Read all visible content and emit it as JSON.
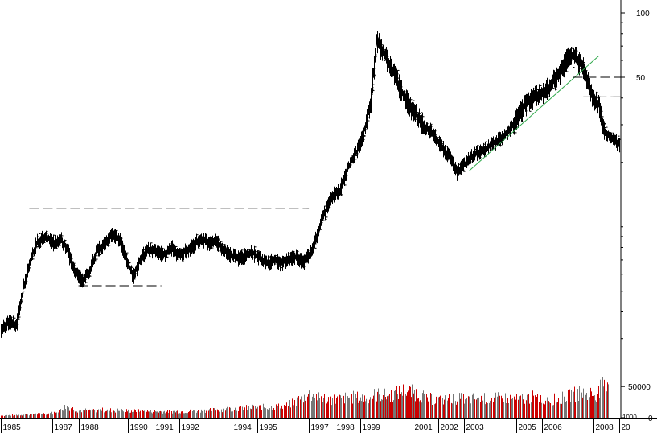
{
  "chart_data": [
    {
      "type": "ohlc",
      "scale": "log",
      "y_ticks": [
        "100",
        "50"
      ],
      "y_tick_values": [
        100,
        50
      ],
      "ylim": [
        2.5,
        120
      ],
      "xlim": [
        1985.0,
        2008.95
      ],
      "x_labels": [
        "1985",
        "1987",
        "1988",
        "1990",
        "1991",
        "1992",
        "1994",
        "1995",
        "1997",
        "1998",
        "1999",
        "2001",
        "2002",
        "2003",
        "2005",
        "2006",
        "2008",
        "20"
      ],
      "x_label_positions": [
        1985.0,
        1987.0,
        1988.0,
        1989.9,
        1990.9,
        1991.9,
        1993.9,
        1994.9,
        1996.9,
        1997.9,
        1998.9,
        2000.9,
        2001.9,
        2002.9,
        2004.9,
        2005.9,
        2007.9,
        2008.9
      ],
      "series": [
        {
          "points": [
            [
              1985.0,
              3.3
            ],
            [
              1985.3,
              3.6
            ],
            [
              1985.6,
              3.5
            ],
            [
              1985.8,
              4.8
            ],
            [
              1986.1,
              6.8
            ],
            [
              1986.4,
              8.5
            ],
            [
              1986.7,
              9.0
            ],
            [
              1987.0,
              8.4
            ],
            [
              1987.3,
              8.8
            ],
            [
              1987.6,
              7.6
            ],
            [
              1987.8,
              6.3
            ],
            [
              1988.1,
              5.6
            ],
            [
              1988.4,
              6.1
            ],
            [
              1988.7,
              7.8
            ],
            [
              1989.0,
              8.3
            ],
            [
              1989.3,
              9.3
            ],
            [
              1989.6,
              8.7
            ],
            [
              1989.8,
              7.3
            ],
            [
              1990.1,
              5.8
            ],
            [
              1990.4,
              7.2
            ],
            [
              1990.7,
              7.8
            ],
            [
              1991.0,
              7.6
            ],
            [
              1991.3,
              7.4
            ],
            [
              1991.6,
              8.0
            ],
            [
              1991.8,
              7.4
            ],
            [
              1992.1,
              7.7
            ],
            [
              1992.4,
              8.1
            ],
            [
              1992.7,
              8.9
            ],
            [
              1993.0,
              8.4
            ],
            [
              1993.3,
              8.6
            ],
            [
              1993.6,
              7.8
            ],
            [
              1993.8,
              7.5
            ],
            [
              1994.1,
              7.1
            ],
            [
              1994.4,
              7.3
            ],
            [
              1994.7,
              7.6
            ],
            [
              1995.0,
              7.1
            ],
            [
              1995.3,
              6.8
            ],
            [
              1995.6,
              7.0
            ],
            [
              1995.8,
              6.7
            ],
            [
              1996.1,
              7.1
            ],
            [
              1996.4,
              7.2
            ],
            [
              1996.7,
              6.8
            ],
            [
              1997.0,
              7.8
            ],
            [
              1997.3,
              10.0
            ],
            [
              1997.6,
              12.5
            ],
            [
              1997.8,
              13.9
            ],
            [
              1998.1,
              15.0
            ],
            [
              1998.4,
              19.0
            ],
            [
              1998.7,
              22.0
            ],
            [
              1999.0,
              27.0
            ],
            [
              1999.3,
              40.0
            ],
            [
              1999.5,
              75.0
            ],
            [
              1999.8,
              65.0
            ],
            [
              2000.1,
              55.0
            ],
            [
              2000.4,
              45.0
            ],
            [
              2000.7,
              38.0
            ],
            [
              2001.0,
              34.0
            ],
            [
              2001.3,
              30.0
            ],
            [
              2001.6,
              28.0
            ],
            [
              2001.8,
              26.0
            ],
            [
              2002.1,
              23.0
            ],
            [
              2002.4,
              20.5
            ],
            [
              2002.6,
              18.0
            ],
            [
              2002.9,
              19.5
            ],
            [
              2003.2,
              21.5
            ],
            [
              2003.5,
              22.5
            ],
            [
              2003.8,
              23.5
            ],
            [
              2004.1,
              25.0
            ],
            [
              2004.4,
              26.5
            ],
            [
              2004.7,
              29.0
            ],
            [
              2005.0,
              33.0
            ],
            [
              2005.2,
              36.5
            ],
            [
              2005.5,
              40.0
            ],
            [
              2005.8,
              42.0
            ],
            [
              2006.1,
              44.0
            ],
            [
              2006.4,
              49.0
            ],
            [
              2006.7,
              55.0
            ],
            [
              2006.9,
              64.0
            ],
            [
              2007.2,
              62.0
            ],
            [
              2007.5,
              55.0
            ],
            [
              2007.8,
              42.0
            ],
            [
              2008.1,
              37.0
            ],
            [
              2008.3,
              28.0
            ],
            [
              2008.6,
              26.0
            ],
            [
              2008.9,
              24.0
            ]
          ]
        }
      ],
      "annotations": [
        {
          "type": "dashed-line",
          "x": [
            1986.1,
            1996.9
          ],
          "y": 12.2
        },
        {
          "type": "dashed-line",
          "x": [
            1988.0,
            1991.2
          ],
          "y": 5.3
        },
        {
          "type": "trendline",
          "x": [
            2003.1,
            2008.1
          ],
          "y": [
            18.3,
            63.0
          ]
        },
        {
          "type": "dashed-line",
          "x": [
            2007.1,
            2008.95
          ],
          "y": 50.0
        },
        {
          "type": "dashed-line",
          "x": [
            2007.5,
            2008.95
          ],
          "y": 40.5
        }
      ]
    },
    {
      "type": "bar",
      "title": "",
      "y_ticks": [
        "50000",
        "0"
      ],
      "y_tick_values": [
        50000,
        0
      ],
      "ylim": [
        0,
        85000
      ],
      "unit_label": "1000",
      "colors": {
        "up": "#cc0000",
        "down": "#777777"
      },
      "series": [
        {
          "points": [
            [
              1985.0,
              4000
            ],
            [
              1986.0,
              6000
            ],
            [
              1987.0,
              9000
            ],
            [
              1987.5,
              22000
            ],
            [
              1988.0,
              14000
            ],
            [
              1989.0,
              15000
            ],
            [
              1990.0,
              13000
            ],
            [
              1991.0,
              12000
            ],
            [
              1992.0,
              12000
            ],
            [
              1993.0,
              14000
            ],
            [
              1994.0,
              18000
            ],
            [
              1995.0,
              20000
            ],
            [
              1996.0,
              22000
            ],
            [
              1996.9,
              45000
            ],
            [
              1997.5,
              38000
            ],
            [
              1998.0,
              35000
            ],
            [
              1998.5,
              40000
            ],
            [
              1999.0,
              38000
            ],
            [
              1999.5,
              45000
            ],
            [
              2000.0,
              42000
            ],
            [
              2000.5,
              52000
            ],
            [
              2001.0,
              48000
            ],
            [
              2001.5,
              38000
            ],
            [
              2002.0,
              33000
            ],
            [
              2002.5,
              38000
            ],
            [
              2003.0,
              35000
            ],
            [
              2003.5,
              40000
            ],
            [
              2004.0,
              37000
            ],
            [
              2004.5,
              38000
            ],
            [
              2005.0,
              35000
            ],
            [
              2005.5,
              40000
            ],
            [
              2006.0,
              38000
            ],
            [
              2006.5,
              35000
            ],
            [
              2007.0,
              44000
            ],
            [
              2007.5,
              50000
            ],
            [
              2008.0,
              45000
            ],
            [
              2008.5,
              80000
            ]
          ]
        }
      ]
    }
  ]
}
